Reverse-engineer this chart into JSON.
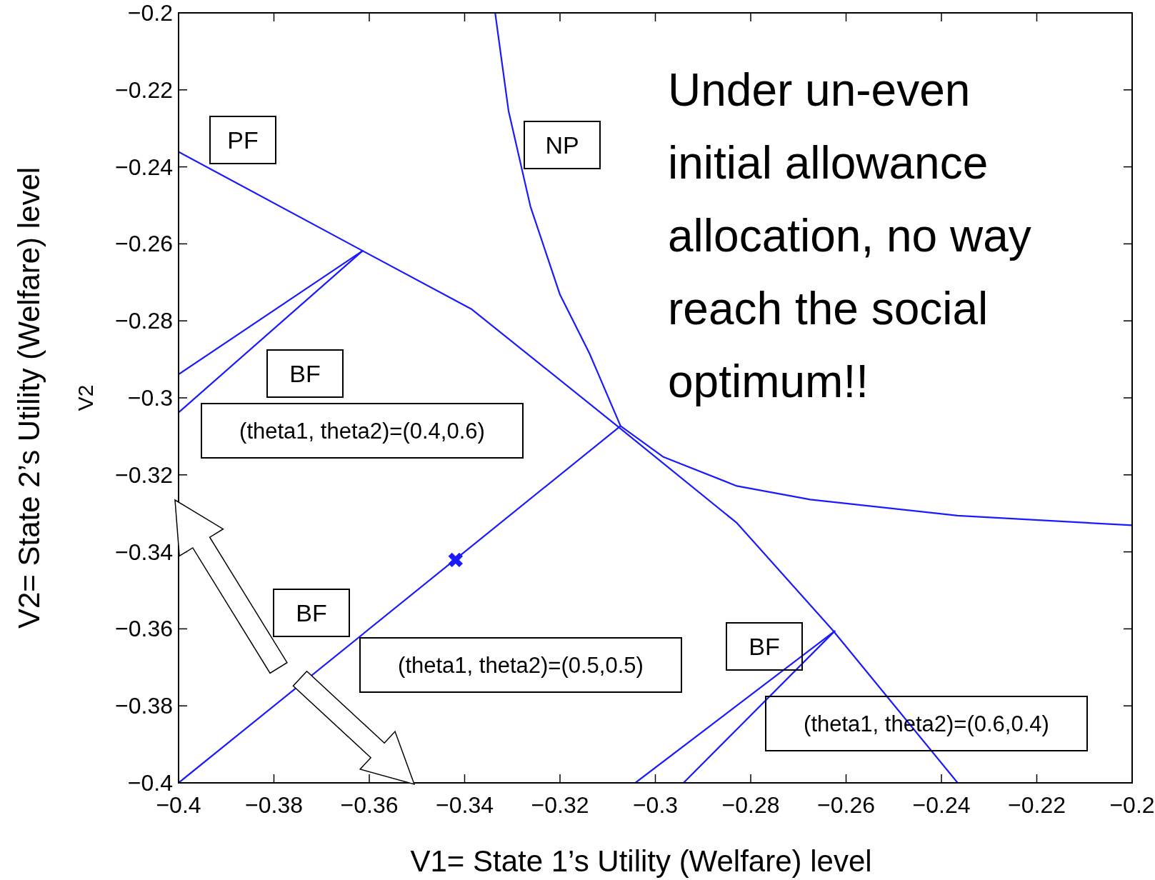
{
  "chart_data": {
    "type": "line",
    "xlabel": "V1= State 1’s Utility (Welfare) level",
    "ylabel": "V2= State 2’s Utility (Welfare) level",
    "xlim": [
      -0.4,
      -0.2
    ],
    "ylim": [
      -0.4,
      -0.2
    ],
    "xticks": [
      -0.4,
      -0.38,
      -0.36,
      -0.34,
      -0.32,
      -0.3,
      -0.28,
      -0.26,
      -0.24,
      -0.22,
      -0.2
    ],
    "yticks": [
      -0.4,
      -0.38,
      -0.36,
      -0.34,
      -0.32,
      -0.3,
      -0.28,
      -0.26,
      -0.24,
      -0.22,
      -0.2
    ],
    "grid": false,
    "line_style": "solid",
    "series": [
      {
        "color": "#1a1aff",
        "marker": "none",
        "x": [
          -0.4,
          -0.3614,
          -0.3385,
          -0.308,
          -0.2829,
          -0.2629,
          -0.2366
        ],
        "values": [
          -0.2361,
          -0.2618,
          -0.277,
          -0.3073,
          -0.3325,
          -0.3602,
          -0.4
        ]
      },
      {
        "color": "#1a1aff",
        "marker": "none",
        "x": [
          -0.3336,
          -0.3308,
          -0.3262,
          -0.32,
          -0.3138,
          -0.3073,
          -0.2984,
          -0.2829,
          -0.2675,
          -0.2366,
          -0.2
        ],
        "values": [
          -0.2,
          -0.2254,
          -0.2503,
          -0.2732,
          -0.2885,
          -0.3073,
          -0.3153,
          -0.3229,
          -0.3264,
          -0.3306,
          -0.3331
        ]
      },
      {
        "color": "#1a1aff",
        "marker": "none",
        "x": [
          -0.4,
          -0.3614
        ],
        "values": [
          -0.2939,
          -0.2618
        ]
      },
      {
        "color": "#1a1aff",
        "marker": "none",
        "x": [
          -0.4,
          -0.3614
        ],
        "values": [
          -0.3038,
          -0.2618
        ]
      },
      {
        "color": "#1a1aff",
        "marker": "none",
        "x": [
          -0.4,
          -0.3073
        ],
        "values": [
          -0.4,
          -0.3073
        ]
      },
      {
        "color": "#1a1aff",
        "marker": "none",
        "x": [
          -0.3042,
          -0.2624
        ],
        "values": [
          -0.4,
          -0.3606
        ]
      },
      {
        "color": "#1a1aff",
        "marker": "none",
        "x": [
          -0.2941,
          -0.2624
        ],
        "values": [
          -0.4,
          -0.3606
        ]
      },
      {
        "type": "scatter",
        "color": "#1a1aff",
        "marker": "cross",
        "x": [
          -0.3419
        ],
        "values": [
          -0.3421
        ]
      }
    ],
    "annotations": [
      "Under un-even initial allowance allocation, no way reach the social optimum!!",
      "V2",
      "PF",
      "NP",
      "BF",
      "(theta1, theta2)=(0.4,0.6)",
      "BF",
      "(theta1, theta2)=(0.5,0.5)",
      "BF",
      "(theta1, theta2)=(0.6,0.4)"
    ]
  }
}
